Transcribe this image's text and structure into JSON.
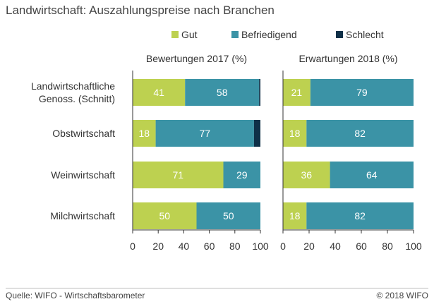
{
  "title": "Landwirtschaft: Auszahlungspreise nach Branchen",
  "source": "Quelle: WIFO - Wirtschaftsbarometer",
  "copyright": "© 2018 WIFO",
  "colors": {
    "gut": "#bdd150",
    "befriedigend": "#3b93a6",
    "schlecht": "#0f3048",
    "axis": "#333333",
    "label_on_bar": "#ffffff"
  },
  "chart_data": [
    {
      "type": "bar",
      "orientation": "horizontal",
      "stacked": true,
      "title": "Bewertungen 2017 (%)",
      "categories": [
        "Landwirtschaftliche Genoss. (Schnitt)",
        "Obstwirtschaft",
        "Weinwirtschaft",
        "Milchwirtschaft"
      ],
      "series": [
        {
          "name": "Gut",
          "values": [
            41,
            18,
            71,
            50
          ]
        },
        {
          "name": "Befriedigend",
          "values": [
            58,
            77,
            29,
            50
          ]
        },
        {
          "name": "Schlecht",
          "values": [
            1,
            5,
            0,
            0
          ]
        }
      ],
      "xlim": [
        0,
        100
      ],
      "xticks": [
        "0",
        "20",
        "40",
        "60",
        "80",
        "100"
      ],
      "legend": "top"
    },
    {
      "type": "bar",
      "orientation": "horizontal",
      "stacked": true,
      "title": "Erwartungen 2018 (%)",
      "categories": [
        "Landwirtschaftliche Genoss. (Schnitt)",
        "Obstwirtschaft",
        "Weinwirtschaft",
        "Milchwirtschaft"
      ],
      "series": [
        {
          "name": "Gut",
          "values": [
            21,
            18,
            36,
            18
          ]
        },
        {
          "name": "Befriedigend",
          "values": [
            79,
            82,
            64,
            82
          ]
        },
        {
          "name": "Schlecht",
          "values": [
            0,
            0,
            0,
            0
          ]
        }
      ],
      "xlim": [
        0,
        100
      ],
      "xticks": [
        "0",
        "20",
        "40",
        "60",
        "80",
        "100"
      ],
      "legend": "top"
    }
  ]
}
